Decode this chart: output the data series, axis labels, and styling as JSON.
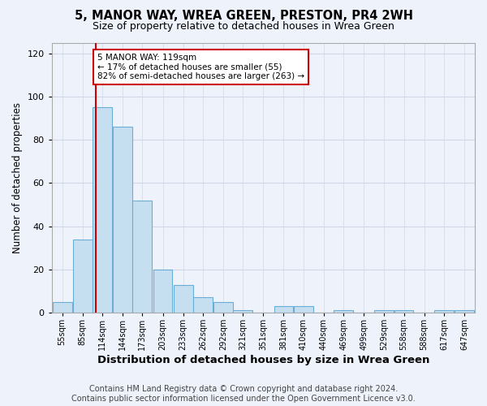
{
  "title1": "5, MANOR WAY, WREA GREEN, PRESTON, PR4 2WH",
  "title2": "Size of property relative to detached houses in Wrea Green",
  "xlabel": "Distribution of detached houses by size in Wrea Green",
  "ylabel": "Number of detached properties",
  "footer1": "Contains HM Land Registry data © Crown copyright and database right 2024.",
  "footer2": "Contains public sector information licensed under the Open Government Licence v3.0.",
  "bin_labels": [
    "55sqm",
    "85sqm",
    "114sqm",
    "144sqm",
    "173sqm",
    "203sqm",
    "233sqm",
    "262sqm",
    "292sqm",
    "321sqm",
    "351sqm",
    "381sqm",
    "410sqm",
    "440sqm",
    "469sqm",
    "499sqm",
    "529sqm",
    "558sqm",
    "588sqm",
    "617sqm",
    "647sqm"
  ],
  "bin_edges": [
    55,
    85,
    114,
    144,
    173,
    203,
    233,
    262,
    292,
    321,
    351,
    381,
    410,
    440,
    469,
    499,
    529,
    558,
    588,
    617,
    647
  ],
  "bin_width": 29,
  "values": [
    5,
    34,
    95,
    86,
    52,
    20,
    13,
    7,
    5,
    1,
    0,
    3,
    3,
    0,
    1,
    0,
    1,
    1,
    0,
    1,
    1
  ],
  "bar_color": "#c5dff0",
  "bar_edge_color": "#6aaed6",
  "property_size": 119,
  "red_line_color": "#cc0000",
  "annotation_line1": "5 MANOR WAY: 119sqm",
  "annotation_line2": "← 17% of detached houses are smaller (55)",
  "annotation_line3": "82% of semi-detached houses are larger (263) →",
  "annotation_box_color": "white",
  "annotation_box_edge_color": "#cc0000",
  "ylim": [
    0,
    125
  ],
  "yticks": [
    0,
    20,
    40,
    60,
    80,
    100,
    120
  ],
  "background_color": "#eef2fb",
  "grid_color": "#d0d8e8",
  "title1_fontsize": 10.5,
  "title2_fontsize": 9,
  "xlabel_fontsize": 9.5,
  "ylabel_fontsize": 8.5,
  "tick_fontsize": 7,
  "footer_fontsize": 7,
  "annotation_fontsize": 7.5
}
